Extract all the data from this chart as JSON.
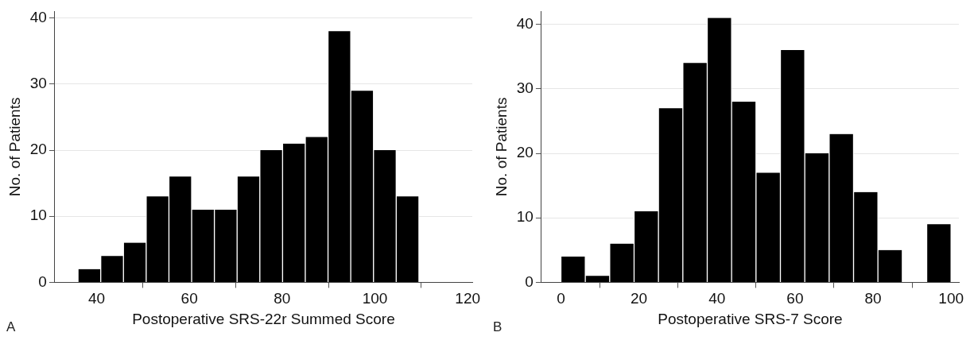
{
  "chart_data": [
    {
      "type": "histogram",
      "xlabel": "Postoperative SRS-22r Summed Score",
      "ylabel": "No. of Patients",
      "annotations": [
        "A"
      ],
      "color": "#000000",
      "bins": [
        36,
        40.9,
        45.8,
        50.7,
        55.6,
        60.5,
        65.4,
        70.3,
        75.2,
        80.1,
        85,
        89.9,
        94.8,
        99.7,
        104.6,
        109.5
      ],
      "values": [
        2,
        4,
        6,
        13,
        16,
        11,
        11,
        16,
        20,
        21,
        22,
        38,
        29,
        20,
        13
      ],
      "xlim": [
        31,
        121
      ],
      "xticks": [
        40,
        60,
        80,
        100,
        120
      ],
      "ylim": [
        0,
        41
      ],
      "yticks": [
        0,
        10,
        20,
        30,
        40
      ],
      "grid": "y",
      "legend": false
    },
    {
      "type": "histogram",
      "xlabel": "Postoperative SRS-7 Score",
      "ylabel": "No. of Patients",
      "annotations": [
        "B"
      ],
      "color": "#000000",
      "bins": [
        0,
        6.25,
        12.5,
        18.75,
        25,
        31.25,
        37.5,
        43.75,
        50,
        56.25,
        62.5,
        68.75,
        75,
        81.25,
        87.5,
        93.75,
        100
      ],
      "values": [
        4,
        1,
        6,
        11,
        27,
        34,
        41,
        28,
        17,
        36,
        20,
        23,
        14,
        5,
        0,
        9
      ],
      "xlim": [
        -5,
        102
      ],
      "xticks": [
        0,
        20,
        40,
        60,
        80,
        100
      ],
      "ylim": [
        0,
        42
      ],
      "yticks": [
        0,
        10,
        20,
        30,
        40
      ],
      "grid": "y",
      "legend": false
    }
  ]
}
